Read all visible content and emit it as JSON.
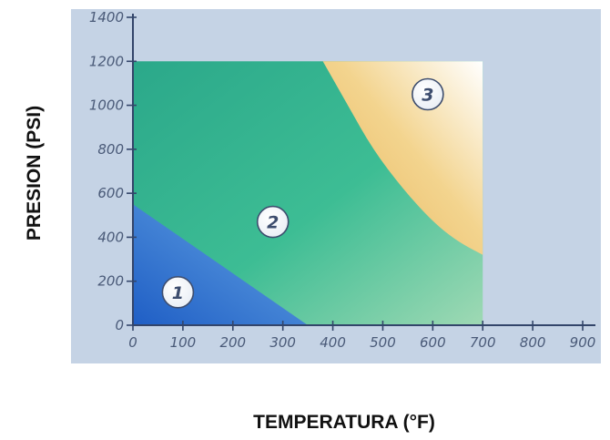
{
  "chart_data": {
    "type": "area",
    "title": "",
    "xlabel": "TEMPERATURA (°F)",
    "ylabel": "PRESION (PSI)",
    "xlim": [
      0,
      900
    ],
    "ylim": [
      0,
      1400
    ],
    "x_ticks": [
      0,
      100,
      200,
      300,
      400,
      500,
      600,
      700,
      800,
      900
    ],
    "y_ticks": [
      0,
      200,
      400,
      600,
      800,
      1000,
      1200,
      1400
    ],
    "grid": false,
    "region_extent": {
      "x": [
        0,
        700
      ],
      "y": [
        0,
        1200
      ]
    },
    "regions": [
      {
        "label": "1",
        "color": "#2f6fcf",
        "boundary": [
          [
            0,
            550
          ],
          [
            350,
            0
          ]
        ],
        "label_at": [
          90,
          150
        ]
      },
      {
        "label": "2",
        "color": "#34b48f",
        "label_at": [
          280,
          470
        ]
      },
      {
        "label": "3",
        "color": "#f2c878",
        "boundary": [
          [
            380,
            1200
          ],
          [
            430,
            1000
          ],
          [
            480,
            800
          ],
          [
            540,
            620
          ],
          [
            600,
            470
          ],
          [
            650,
            380
          ],
          [
            700,
            320
          ]
        ],
        "label_at": [
          590,
          1050
        ]
      }
    ],
    "colors": {
      "background": "#c5d3e5",
      "axis": "#33456a"
    }
  }
}
